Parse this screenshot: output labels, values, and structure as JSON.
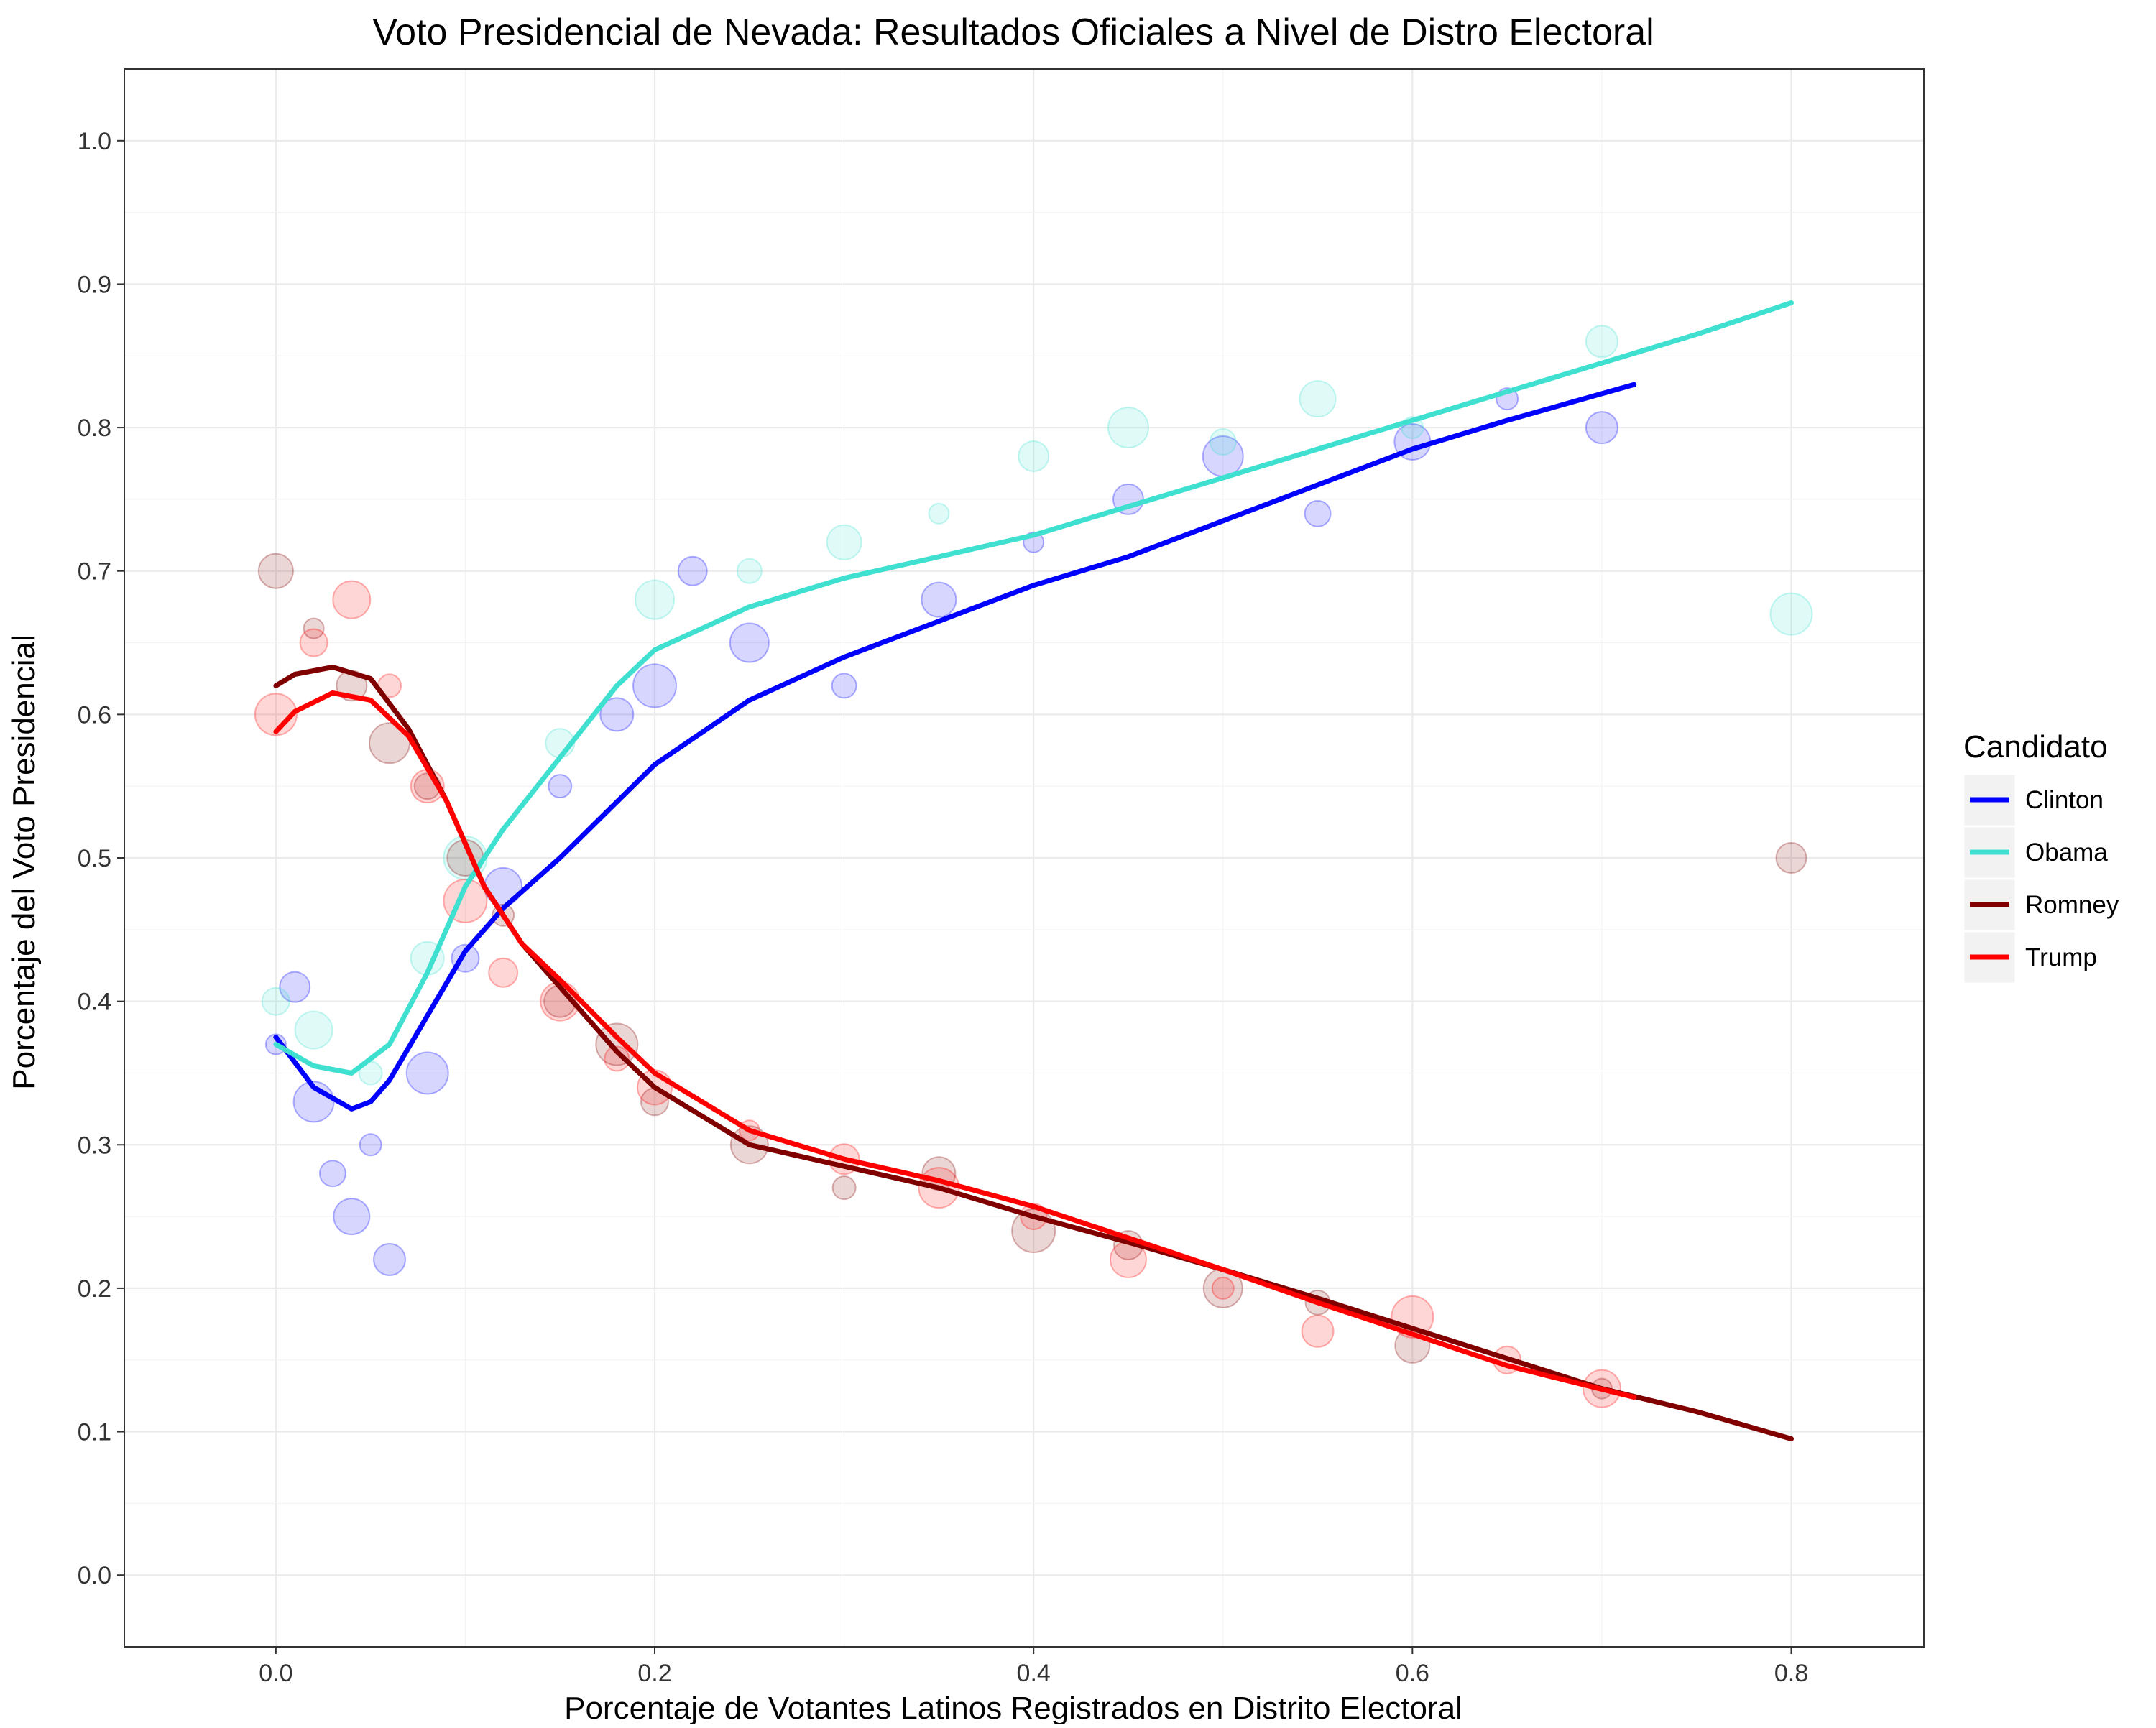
{
  "chart_data": {
    "type": "scatter",
    "title": "Voto Presidencial de Nevada: Resultados Oficiales a Nivel de Distro Electoral",
    "xlabel": "Porcentaje de Votantes Latinos Registrados en Distrito Electoral",
    "ylabel": "Porcentaje del Voto Presidencial",
    "xlim": [
      -0.08,
      0.87
    ],
    "ylim": [
      -0.05,
      1.05
    ],
    "x_ticks": [
      0.0,
      0.2,
      0.4,
      0.6,
      0.8
    ],
    "x_tick_labels": [
      "0.0",
      "0.2",
      "0.4",
      "0.6",
      "0.8"
    ],
    "y_ticks": [
      0.0,
      0.1,
      0.2,
      0.3,
      0.4,
      0.5,
      0.6,
      0.7,
      0.8,
      0.9,
      1.0
    ],
    "y_tick_labels": [
      "0.0",
      "0.1",
      "0.2",
      "0.3",
      "0.4",
      "0.5",
      "0.6",
      "0.7",
      "0.8",
      "0.9",
      "1.0"
    ],
    "grid": true,
    "panel_background": "#ffffff",
    "grid_color": "#ebebeb",
    "legend": {
      "title": "Candidato",
      "position": "right"
    },
    "series": [
      {
        "name": "Clinton",
        "color": "#0000ff",
        "trend": [
          [
            0.0,
            0.375
          ],
          [
            0.02,
            0.34
          ],
          [
            0.04,
            0.325
          ],
          [
            0.05,
            0.33
          ],
          [
            0.06,
            0.345
          ],
          [
            0.08,
            0.39
          ],
          [
            0.1,
            0.435
          ],
          [
            0.12,
            0.465
          ],
          [
            0.15,
            0.5
          ],
          [
            0.2,
            0.565
          ],
          [
            0.25,
            0.61
          ],
          [
            0.3,
            0.64
          ],
          [
            0.35,
            0.665
          ],
          [
            0.4,
            0.69
          ],
          [
            0.45,
            0.71
          ],
          [
            0.5,
            0.735
          ],
          [
            0.55,
            0.76
          ],
          [
            0.6,
            0.785
          ],
          [
            0.65,
            0.805
          ],
          [
            0.717,
            0.83
          ]
        ],
        "points": [
          [
            0.0,
            0.37
          ],
          [
            0.01,
            0.41
          ],
          [
            0.02,
            0.33
          ],
          [
            0.03,
            0.28
          ],
          [
            0.04,
            0.25
          ],
          [
            0.05,
            0.3
          ],
          [
            0.06,
            0.22
          ],
          [
            0.08,
            0.35
          ],
          [
            0.1,
            0.43
          ],
          [
            0.12,
            0.48
          ],
          [
            0.15,
            0.55
          ],
          [
            0.18,
            0.6
          ],
          [
            0.2,
            0.62
          ],
          [
            0.22,
            0.7
          ],
          [
            0.25,
            0.65
          ],
          [
            0.3,
            0.62
          ],
          [
            0.35,
            0.68
          ],
          [
            0.4,
            0.72
          ],
          [
            0.45,
            0.75
          ],
          [
            0.5,
            0.78
          ],
          [
            0.55,
            0.74
          ],
          [
            0.6,
            0.79
          ],
          [
            0.65,
            0.82
          ],
          [
            0.7,
            0.8
          ]
        ]
      },
      {
        "name": "Obama",
        "color": "#40e0d0",
        "trend": [
          [
            0.0,
            0.37
          ],
          [
            0.02,
            0.355
          ],
          [
            0.04,
            0.35
          ],
          [
            0.06,
            0.37
          ],
          [
            0.08,
            0.42
          ],
          [
            0.1,
            0.48
          ],
          [
            0.12,
            0.52
          ],
          [
            0.15,
            0.57
          ],
          [
            0.18,
            0.62
          ],
          [
            0.2,
            0.645
          ],
          [
            0.25,
            0.675
          ],
          [
            0.3,
            0.695
          ],
          [
            0.35,
            0.71
          ],
          [
            0.4,
            0.725
          ],
          [
            0.45,
            0.745
          ],
          [
            0.5,
            0.765
          ],
          [
            0.55,
            0.785
          ],
          [
            0.6,
            0.805
          ],
          [
            0.65,
            0.825
          ],
          [
            0.7,
            0.845
          ],
          [
            0.75,
            0.865
          ],
          [
            0.8,
            0.887
          ]
        ],
        "points": [
          [
            0.0,
            0.4
          ],
          [
            0.02,
            0.38
          ],
          [
            0.05,
            0.35
          ],
          [
            0.08,
            0.43
          ],
          [
            0.1,
            0.5
          ],
          [
            0.15,
            0.58
          ],
          [
            0.2,
            0.68
          ],
          [
            0.25,
            0.7
          ],
          [
            0.3,
            0.72
          ],
          [
            0.35,
            0.74
          ],
          [
            0.4,
            0.78
          ],
          [
            0.45,
            0.8
          ],
          [
            0.5,
            0.79
          ],
          [
            0.55,
            0.82
          ],
          [
            0.6,
            0.8
          ],
          [
            0.7,
            0.86
          ],
          [
            0.8,
            0.67
          ]
        ]
      },
      {
        "name": "Romney",
        "color": "#800000",
        "trend": [
          [
            0.0,
            0.62
          ],
          [
            0.01,
            0.628
          ],
          [
            0.03,
            0.633
          ],
          [
            0.05,
            0.625
          ],
          [
            0.07,
            0.59
          ],
          [
            0.09,
            0.54
          ],
          [
            0.11,
            0.48
          ],
          [
            0.13,
            0.44
          ],
          [
            0.15,
            0.41
          ],
          [
            0.18,
            0.365
          ],
          [
            0.2,
            0.34
          ],
          [
            0.25,
            0.3
          ],
          [
            0.3,
            0.285
          ],
          [
            0.35,
            0.27
          ],
          [
            0.4,
            0.25
          ],
          [
            0.45,
            0.232
          ],
          [
            0.5,
            0.213
          ],
          [
            0.55,
            0.193
          ],
          [
            0.6,
            0.172
          ],
          [
            0.65,
            0.151
          ],
          [
            0.7,
            0.13
          ],
          [
            0.75,
            0.114
          ],
          [
            0.8,
            0.095
          ]
        ],
        "points": [
          [
            0.0,
            0.7
          ],
          [
            0.02,
            0.66
          ],
          [
            0.04,
            0.62
          ],
          [
            0.06,
            0.58
          ],
          [
            0.08,
            0.55
          ],
          [
            0.1,
            0.5
          ],
          [
            0.12,
            0.46
          ],
          [
            0.15,
            0.4
          ],
          [
            0.18,
            0.37
          ],
          [
            0.2,
            0.33
          ],
          [
            0.25,
            0.3
          ],
          [
            0.3,
            0.27
          ],
          [
            0.35,
            0.28
          ],
          [
            0.4,
            0.24
          ],
          [
            0.45,
            0.23
          ],
          [
            0.5,
            0.2
          ],
          [
            0.55,
            0.19
          ],
          [
            0.6,
            0.16
          ],
          [
            0.7,
            0.13
          ],
          [
            0.8,
            0.5
          ]
        ]
      },
      {
        "name": "Trump",
        "color": "#ff0000",
        "trend": [
          [
            0.0,
            0.588
          ],
          [
            0.01,
            0.602
          ],
          [
            0.03,
            0.615
          ],
          [
            0.05,
            0.61
          ],
          [
            0.07,
            0.585
          ],
          [
            0.09,
            0.54
          ],
          [
            0.11,
            0.48
          ],
          [
            0.13,
            0.44
          ],
          [
            0.15,
            0.415
          ],
          [
            0.18,
            0.375
          ],
          [
            0.2,
            0.35
          ],
          [
            0.25,
            0.31
          ],
          [
            0.3,
            0.29
          ],
          [
            0.35,
            0.275
          ],
          [
            0.4,
            0.257
          ],
          [
            0.45,
            0.235
          ],
          [
            0.5,
            0.213
          ],
          [
            0.55,
            0.19
          ],
          [
            0.6,
            0.168
          ],
          [
            0.65,
            0.146
          ],
          [
            0.717,
            0.124
          ]
        ],
        "points": [
          [
            0.0,
            0.6
          ],
          [
            0.02,
            0.65
          ],
          [
            0.04,
            0.68
          ],
          [
            0.06,
            0.62
          ],
          [
            0.08,
            0.55
          ],
          [
            0.1,
            0.47
          ],
          [
            0.12,
            0.42
          ],
          [
            0.15,
            0.4
          ],
          [
            0.18,
            0.36
          ],
          [
            0.2,
            0.34
          ],
          [
            0.25,
            0.31
          ],
          [
            0.3,
            0.29
          ],
          [
            0.35,
            0.27
          ],
          [
            0.4,
            0.25
          ],
          [
            0.45,
            0.22
          ],
          [
            0.5,
            0.2
          ],
          [
            0.55,
            0.17
          ],
          [
            0.6,
            0.18
          ],
          [
            0.65,
            0.15
          ],
          [
            0.7,
            0.13
          ]
        ]
      }
    ]
  }
}
